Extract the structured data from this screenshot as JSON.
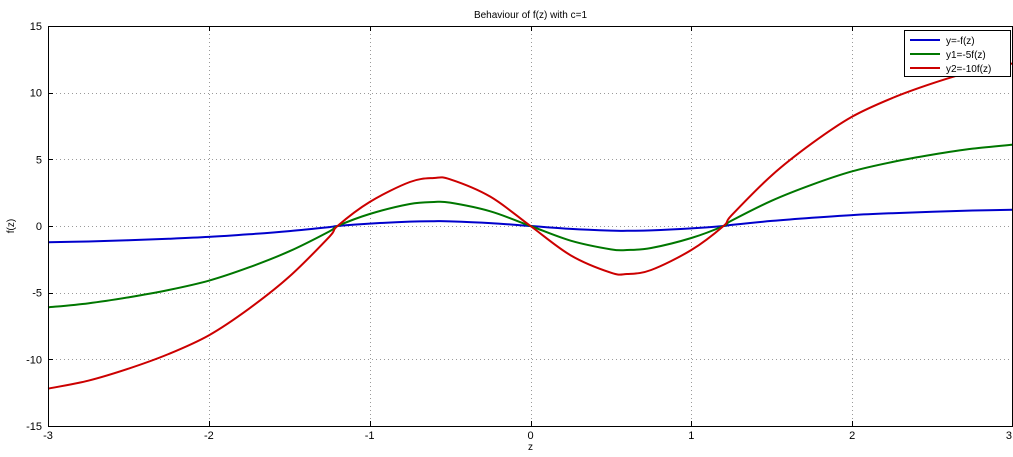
{
  "chart_data": {
    "type": "line",
    "title": "Behaviour of f(z) with c=1",
    "xlabel": "z",
    "ylabel": "f(z)",
    "xlim": [
      -3,
      3
    ],
    "ylim": [
      -15,
      15
    ],
    "grid": true,
    "legend_position": "top-right",
    "x_ticks": [
      -3,
      -2,
      -1,
      0,
      1,
      2,
      3
    ],
    "y_ticks": [
      -15,
      -10,
      -5,
      0,
      5,
      10,
      15
    ],
    "x": [
      -3.0,
      -2.75,
      -2.5,
      -2.25,
      -2.0,
      -1.75,
      -1.5,
      -1.25,
      -1.2,
      -1.0,
      -0.75,
      -0.6,
      -0.5,
      -0.25,
      0.0,
      0.25,
      0.5,
      0.6,
      0.75,
      1.0,
      1.2,
      1.25,
      1.5,
      1.75,
      2.0,
      2.25,
      2.5,
      2.75,
      3.0
    ],
    "series": [
      {
        "name": "y=-f(z)",
        "color": "#0000cc",
        "values": [
          -1.22,
          -1.16,
          -1.07,
          -0.96,
          -0.82,
          -0.62,
          -0.38,
          -0.08,
          0.0,
          0.18,
          0.33,
          0.36,
          0.35,
          0.22,
          0.0,
          -0.22,
          -0.35,
          -0.36,
          -0.33,
          -0.18,
          0.0,
          0.08,
          0.38,
          0.62,
          0.82,
          0.96,
          1.07,
          1.16,
          1.22
        ]
      },
      {
        "name": "y1=-5f(z)",
        "color": "#007700",
        "values": [
          -6.1,
          -5.8,
          -5.35,
          -4.8,
          -4.1,
          -3.1,
          -1.9,
          -0.4,
          0.0,
          0.9,
          1.65,
          1.8,
          1.75,
          1.1,
          0.0,
          -1.1,
          -1.75,
          -1.8,
          -1.65,
          -0.9,
          0.0,
          0.4,
          1.9,
          3.1,
          4.1,
          4.8,
          5.35,
          5.8,
          6.1
        ]
      },
      {
        "name": "y2=-10f(z)",
        "color": "#cc0000",
        "values": [
          -12.2,
          -11.6,
          -10.7,
          -9.6,
          -8.2,
          -6.2,
          -3.8,
          -0.8,
          0.0,
          1.8,
          3.3,
          3.6,
          3.5,
          2.2,
          0.0,
          -2.2,
          -3.5,
          -3.6,
          -3.3,
          -1.8,
          0.0,
          0.8,
          3.8,
          6.2,
          8.2,
          9.6,
          10.7,
          11.6,
          12.2
        ]
      }
    ]
  }
}
